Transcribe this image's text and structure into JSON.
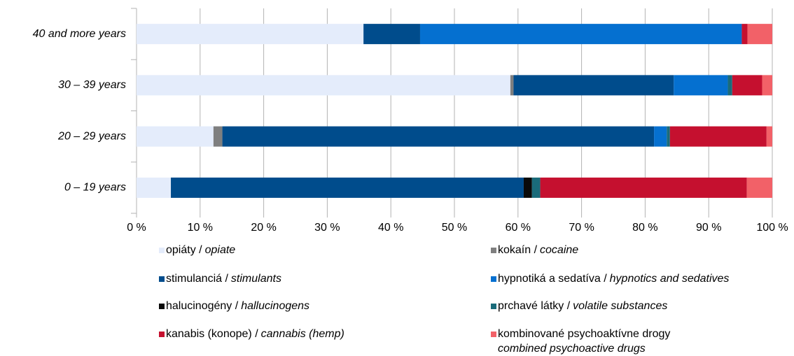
{
  "chart_data": {
    "type": "stacked_barh",
    "categories": [
      "40 and more years",
      "30 – 39 years",
      "20 – 29 years",
      "0 – 19 years"
    ],
    "series": [
      {
        "name": "opiáty /",
        "name_en": "opiate",
        "color": "#e4ecfb",
        "values": [
          35.7,
          58.8,
          12.1,
          5.4
        ]
      },
      {
        "name": "kokaín /",
        "name_en": "cocaine",
        "color": "#7f7f7f",
        "values": [
          0,
          0.5,
          1.4,
          0
        ]
      },
      {
        "name": "stimulanciá /",
        "name_en": "stimulants",
        "color": "#004c8c",
        "values": [
          8.9,
          25.2,
          67.9,
          55.5
        ]
      },
      {
        "name": "hypnotiká a sedatíva /",
        "name_en": "hypnotics and sedatives",
        "color": "#0570d0",
        "values": [
          50.6,
          8.5,
          2.0,
          0
        ]
      },
      {
        "name": "halucinogény /",
        "name_en": "hallucinogens",
        "color": "#0a0a0a",
        "values": [
          0,
          0,
          0,
          1.3
        ]
      },
      {
        "name": "prchavé látky /",
        "name_en": "volatile substances",
        "color": "#1a6b7a",
        "values": [
          0,
          0.7,
          0.5,
          1.3
        ]
      },
      {
        "name": "kanabis (konope) /",
        "name_en": "cannabis (hemp)",
        "color": "#c5102f",
        "values": [
          0.9,
          4.7,
          15.2,
          32.5
        ]
      },
      {
        "name": "kombinované psychoaktívne drogy",
        "name_en": "combined psychoactive drugs",
        "color": "#f26168",
        "values": [
          3.9,
          1.6,
          0.9,
          4.0
        ]
      }
    ],
    "xlim": [
      0,
      100
    ],
    "xticks": [
      {
        "value": 0,
        "label": "0 %"
      },
      {
        "value": 10,
        "label": "10 %"
      },
      {
        "value": 20,
        "label": "20 %"
      },
      {
        "value": 30,
        "label": "30 %"
      },
      {
        "value": 40,
        "label": "40 %"
      },
      {
        "value": 50,
        "label": "50 %"
      },
      {
        "value": 60,
        "label": "60 %"
      },
      {
        "value": 70,
        "label": "70 %"
      },
      {
        "value": 80,
        "label": "80 %"
      },
      {
        "value": 90,
        "label": "90 %"
      },
      {
        "value": 100,
        "label": "100 %"
      }
    ],
    "grid": true
  }
}
